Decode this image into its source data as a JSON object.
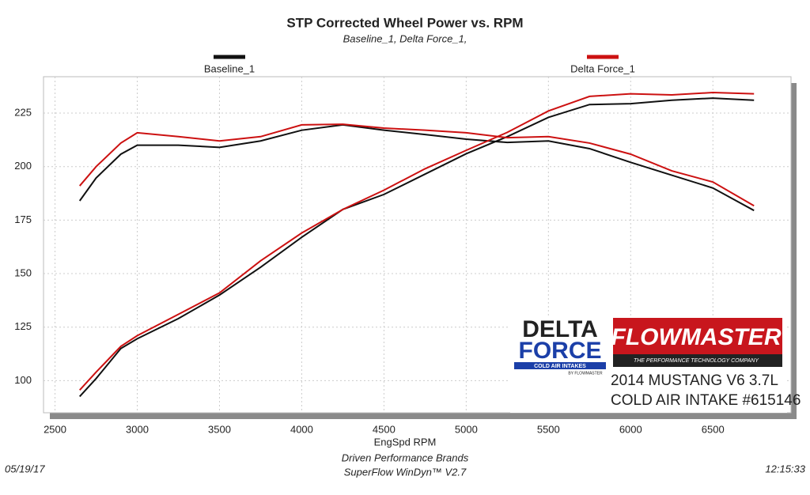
{
  "chart_data": {
    "type": "line",
    "title": "STP Corrected Wheel Power vs. RPM",
    "subtitle": "Baseline_1, Delta Force_1,",
    "x_label": "EngSpd  RPM",
    "x": [
      2650,
      2750,
      2900,
      3000,
      3250,
      3500,
      3750,
      4000,
      4250,
      4500,
      4750,
      5000,
      5250,
      5500,
      5750,
      6000,
      6250,
      6500,
      6750
    ],
    "series": [
      {
        "name": "Baseline_1",
        "color": "#111111",
        "curves": [
          [
            92.6,
            101,
            115,
            119.6,
            129,
            140,
            153,
            167,
            180,
            187,
            196.5,
            206,
            214,
            223,
            229,
            229.4,
            231,
            232,
            231
          ],
          [
            184,
            194.7,
            205.8,
            210,
            210,
            209,
            212,
            217,
            219.5,
            217,
            215,
            212.8,
            211.3,
            212,
            208.4,
            202,
            196,
            190,
            179.5
          ]
        ]
      },
      {
        "name": "Delta Force_1",
        "color": "#cc1111",
        "curves": [
          [
            95.6,
            104,
            116,
            121,
            131,
            141,
            156,
            169,
            180,
            189,
            199,
            207.6,
            216,
            226,
            232.8,
            234,
            233.5,
            234.6,
            234
          ],
          [
            191,
            200,
            211,
            215.8,
            214,
            212,
            214,
            219.5,
            219.8,
            218,
            217,
            215.8,
            213.5,
            214,
            211,
            205.8,
            198,
            192.8,
            181.7
          ]
        ]
      }
    ],
    "xlim": [
      2430,
      6975
    ],
    "ylim": [
      85,
      242
    ],
    "xticks": [
      2500,
      3000,
      3500,
      4000,
      4500,
      5000,
      5500,
      6000,
      6500
    ],
    "yticks": [
      100,
      125,
      150,
      175,
      200,
      225
    ],
    "grid": true,
    "annotations": {
      "delta": "DELTA",
      "force": "FORCE",
      "cold_air": "COLD AIR INTAKES",
      "by": "BY FLOWMASTER",
      "brand": "FLOWMASTER",
      "tagline": "THE PERFORMANCE TECHNOLOGY COMPANY",
      "car": "2014 MUSTANG V6 3.7L",
      "part": "COLD AIR INTAKE #615146"
    },
    "footer": {
      "company": "Driven Performance Brands",
      "software": "SuperFlow WinDyn™  V2.7",
      "date": "05/19/17",
      "time": "12:15:33"
    }
  }
}
